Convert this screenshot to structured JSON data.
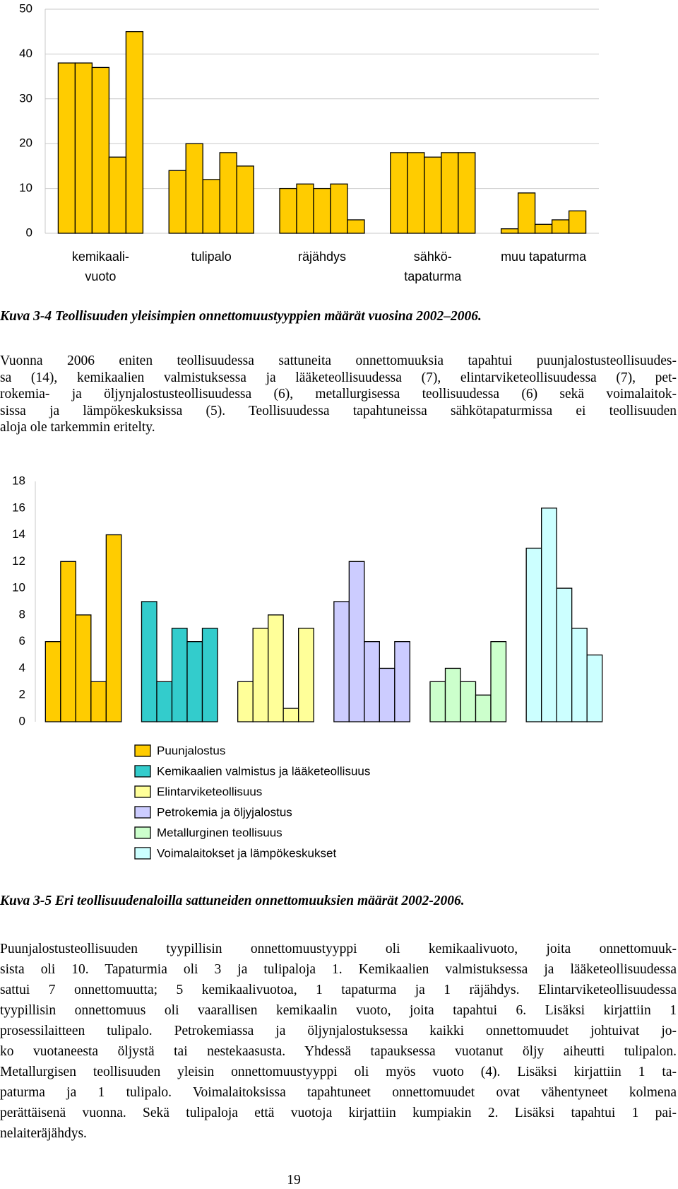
{
  "chart_data": [
    {
      "type": "bar",
      "categories": [
        "kemikaali-\nvuoto",
        "tulipalo",
        "räjähdys",
        "sähkö-\ntapaturma",
        "muu tapaturma"
      ],
      "series": [
        {
          "color": "#ffcc00",
          "values": [
            38,
            14,
            10,
            18,
            1
          ]
        },
        {
          "color": "#ffcc00",
          "values": [
            38,
            20,
            11,
            18,
            9
          ]
        },
        {
          "color": "#ffcc00",
          "values": [
            37,
            12,
            10,
            17,
            2
          ]
        },
        {
          "color": "#ffcc00",
          "values": [
            17,
            18,
            11,
            18,
            3
          ]
        },
        {
          "color": "#ffcc00",
          "values": [
            45,
            15,
            3,
            18,
            5
          ]
        }
      ],
      "ylim": [
        0,
        50
      ],
      "yticks": [
        0,
        10,
        20,
        30,
        40,
        50
      ],
      "grid": true
    },
    {
      "type": "bar",
      "series": [
        {
          "name": "Puunjalostus",
          "color": "#ffcc00",
          "values": [
            6,
            12,
            8,
            3,
            14
          ]
        },
        {
          "name": "Kemikaalien valmistus ja lääketeollisuus",
          "color": "#33cccc",
          "values": [
            9,
            3,
            7,
            6,
            7
          ]
        },
        {
          "name": "Elintarviketeollisuus",
          "color": "#ffff99",
          "values": [
            3,
            7,
            8,
            1,
            7
          ]
        },
        {
          "name": "Petrokemia ja öljyjalostus",
          "color": "#ccccff",
          "values": [
            9,
            12,
            6,
            4,
            6
          ]
        },
        {
          "name": "Metallurginen teollisuus",
          "color": "#ccffcc",
          "values": [
            3,
            4,
            3,
            2,
            6
          ]
        },
        {
          "name": "Voimalaitokset ja lämpökeskukset",
          "color": "#ccffff",
          "values": [
            13,
            16,
            10,
            7,
            5
          ]
        }
      ],
      "ylim": [
        0,
        18
      ],
      "yticks": [
        0,
        2,
        4,
        6,
        8,
        10,
        12,
        14,
        16,
        18
      ],
      "grid": false
    }
  ],
  "captions": [
    "Kuva 3-4 Teollisuuden yleisimpien onnettomuustyyppien määrät vuosina 2002–2006.",
    "Kuva 3-5 Eri teollisuudenaloilla sattuneiden onnettomuuksien määrät 2002-2006."
  ],
  "paragraphs": [
    [
      "Vuonna 2006 eniten teollisuudessa sattuneita onnettomuuksia tapahtui puunjalostusteollisuudes-",
      "sa (14), kemikaalien valmistuksessa ja lääketeollisuudessa (7), elintarviketeollisuudessa (7), pet-",
      "rokemia- ja öljynjalostusteollisuudessa (6), metallurgisessa teollisuudessa (6) sekä voimalaitok-",
      "sissa ja lämpökeskuksissa (5). Teollisuudessa tapahtuneissa sähkötapaturmissa ei teollisuuden",
      "aloja ole tarkemmin eritelty."
    ],
    [
      "Puunjalostusteollisuuden tyypillisin onnettomuustyyppi oli kemikaalivuoto, joita onnettomuuk-",
      "sista oli 10. Tapaturmia oli 3 ja tulipaloja 1. Kemikaalien valmistuksessa ja lääketeollisuudessa",
      "sattui 7 onnettomuutta; 5 kemikaalivuotoa, 1 tapaturma ja 1 räjähdys. Elintarviketeollisuudessa",
      "tyypillisin onnettomuus oli vaarallisen kemikaalin vuoto, joita tapahtui 6. Lisäksi kirjattiin 1",
      "prosessilaitteen tulipalo. Petrokemiassa ja öljynjalostuksessa kaikki onnettomuudet johtuivat jo-",
      "ko vuotaneesta öljystä tai nestekaasusta. Yhdessä tapauksessa vuotanut öljy aiheutti tulipalon.",
      "Metallurgisen teollisuuden yleisin onnettomuustyyppi oli myös vuoto (4). Lisäksi kirjattiin 1 ta-",
      "paturma ja 1 tulipalo. Voimalaitoksissa tapahtuneet onnettomuudet ovat vähentyneet kolmena",
      "perättäisenä vuonna. Sekä tulipaloja että vuotoja kirjattiin kumpiakin 2. Lisäksi tapahtui 1 pai-",
      "nelaiteräjähdys."
    ]
  ],
  "page_number": "19"
}
